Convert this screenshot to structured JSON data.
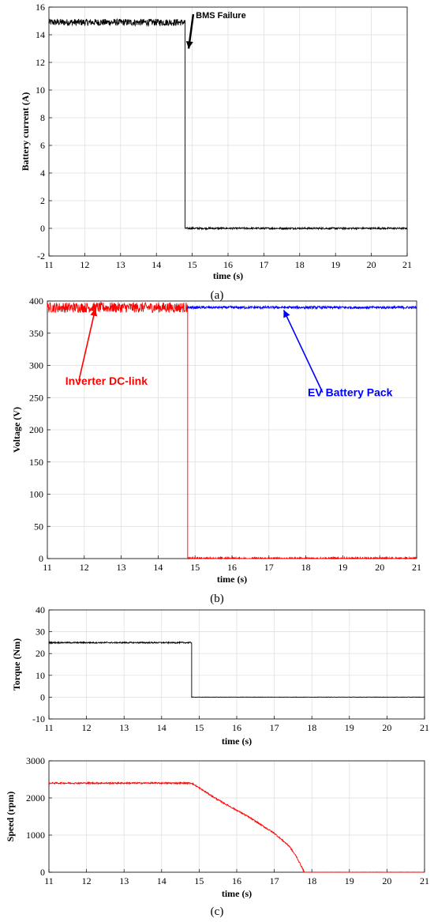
{
  "captions": [
    "(a)",
    "(b)",
    "(c)"
  ],
  "chart_data": [
    {
      "type": "line",
      "caption": "(a)",
      "xlabel": "time (s)",
      "ylabel": "Battery current (A)",
      "xlim": [
        11,
        21
      ],
      "ylim": [
        -2,
        16
      ],
      "xticks": [
        11,
        12,
        13,
        14,
        15,
        16,
        17,
        18,
        19,
        20,
        21
      ],
      "yticks": [
        -2,
        0,
        2,
        4,
        6,
        8,
        10,
        12,
        14,
        16
      ],
      "grid": true,
      "series": [
        {
          "color": "#000000",
          "noise": 0.25,
          "x": [
            11,
            14.8,
            14.8,
            21
          ],
          "y": [
            14.9,
            14.9,
            0.0,
            0.0
          ]
        }
      ],
      "annotations": [
        {
          "text": "BMS Failure",
          "color": "#000000",
          "text_at": [
            15.8,
            15.2
          ],
          "arrow_to": [
            14.9,
            13.0
          ]
        }
      ]
    },
    {
      "type": "line",
      "caption": "(b)",
      "xlabel": "time (s)",
      "ylabel": "Voltage (V)",
      "xlim": [
        11,
        21
      ],
      "ylim": [
        0,
        400
      ],
      "xticks": [
        11,
        12,
        13,
        14,
        15,
        16,
        17,
        18,
        19,
        20,
        21
      ],
      "yticks": [
        0,
        50,
        100,
        150,
        200,
        250,
        300,
        350,
        400
      ],
      "grid": true,
      "series": [
        {
          "name": "Inverter DC-link",
          "color": "#ff0000",
          "noise": 8,
          "x": [
            11,
            14.8,
            14.8,
            21
          ],
          "y": [
            390,
            390,
            0,
            0
          ]
        },
        {
          "name": "EV Battery Pack",
          "color": "#0000ff",
          "noise": 2,
          "x": [
            14.8,
            21
          ],
          "y": [
            390,
            390
          ]
        }
      ],
      "annotations": [
        {
          "text": "Inverter DC-link",
          "color": "#ff0000",
          "text_at": [
            12.6,
            270
          ],
          "arrow_to": [
            12.3,
            388
          ]
        },
        {
          "text": "EV Battery Pack",
          "color": "#0000ff",
          "text_at": [
            19.2,
            252
          ],
          "arrow_to": [
            17.4,
            386
          ]
        }
      ]
    },
    {
      "type": "line",
      "caption": "",
      "xlabel": "time (s)",
      "ylabel": "Torque (Nm)",
      "xlim": [
        11,
        21
      ],
      "ylim": [
        -10,
        40
      ],
      "xticks": [
        11,
        12,
        13,
        14,
        15,
        16,
        17,
        18,
        19,
        20,
        21
      ],
      "yticks": [
        -10,
        0,
        10,
        20,
        30,
        40
      ],
      "grid": true,
      "series": [
        {
          "color": "#000000",
          "noise": 0.3,
          "x": [
            11,
            14.8,
            14.8,
            21
          ],
          "y": [
            25,
            25,
            0,
            0
          ]
        }
      ],
      "annotations": []
    },
    {
      "type": "line",
      "caption": "(c)",
      "xlabel": "time (s)",
      "ylabel": "Speed (rpm)",
      "xlim": [
        11,
        21
      ],
      "ylim": [
        0,
        3000
      ],
      "xticks": [
        11,
        12,
        13,
        14,
        15,
        16,
        17,
        18,
        19,
        20,
        21
      ],
      "yticks": [
        0,
        1000,
        2000,
        3000
      ],
      "grid": true,
      "series": [
        {
          "color": "#ff0000",
          "noise": 20,
          "x": [
            11,
            14.8,
            15.5,
            16.3,
            17.0,
            17.4,
            17.6,
            17.8,
            21
          ],
          "y": [
            2400,
            2400,
            1950,
            1500,
            1050,
            700,
            400,
            0,
            0
          ]
        }
      ],
      "annotations": []
    }
  ]
}
